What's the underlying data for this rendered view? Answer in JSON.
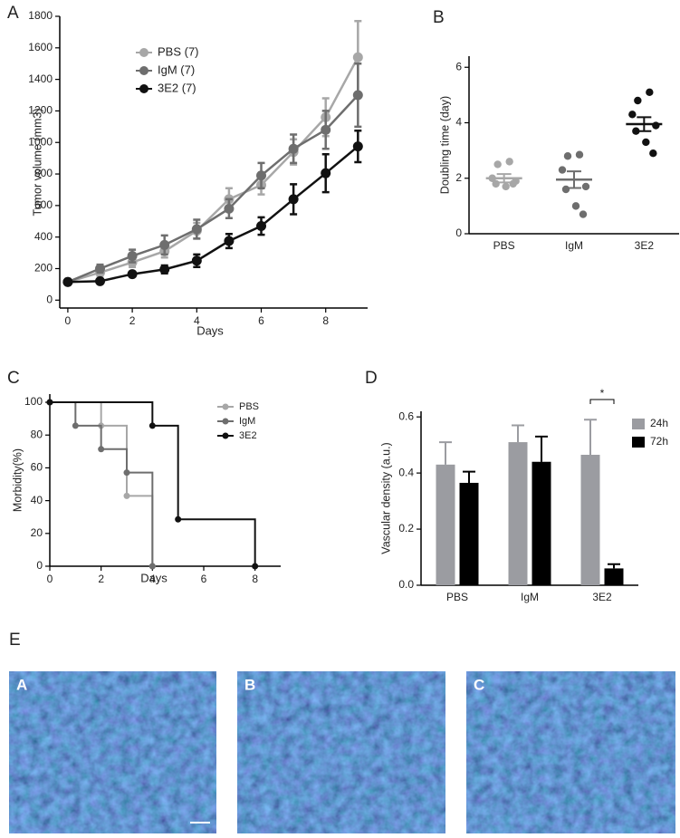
{
  "chart_data": [
    {
      "type": "line",
      "panel": "A",
      "xlabel": "Days",
      "ylabel": "Tumor volume (mm3)",
      "x": [
        0,
        1,
        2,
        3,
        4,
        5,
        6,
        7,
        8,
        9
      ],
      "series": [
        {
          "name": "PBS (7)",
          "color": "#a7a7a7",
          "values": [
            115,
            175,
            240,
            310,
            440,
            640,
            730,
            940,
            1160,
            1540
          ],
          "errors": [
            15,
            20,
            30,
            40,
            50,
            70,
            60,
            80,
            120,
            230
          ]
        },
        {
          "name": "IgM (7)",
          "color": "#6e6e6e",
          "values": [
            115,
            200,
            280,
            350,
            450,
            580,
            790,
            960,
            1080,
            1300
          ],
          "errors": [
            15,
            25,
            40,
            60,
            60,
            60,
            80,
            90,
            120,
            200
          ]
        },
        {
          "name": "3E2 (7)",
          "color": "#111111",
          "values": [
            115,
            120,
            165,
            195,
            250,
            375,
            470,
            640,
            805,
            975
          ],
          "errors": [
            10,
            15,
            15,
            25,
            40,
            45,
            55,
            95,
            120,
            100
          ]
        }
      ],
      "xlim": [
        -0.25,
        9.3
      ],
      "xticks": [
        0,
        2,
        4,
        6,
        8
      ],
      "ylim": [
        -50,
        1800
      ],
      "yticks": [
        0,
        200,
        400,
        600,
        800,
        1000,
        1200,
        1400,
        1600,
        1800
      ]
    },
    {
      "type": "dot",
      "panel": "B",
      "ylabel": "Doubling time (day)",
      "categories": [
        "PBS",
        "IgM",
        "3E2"
      ],
      "colors": [
        "#a7a7a7",
        "#6e6e6e",
        "#111111"
      ],
      "values": [
        [
          2.6,
          2.5,
          2.0,
          1.9,
          1.8,
          1.7,
          1.8
        ],
        [
          2.85,
          2.8,
          2.3,
          1.7,
          1.6,
          1.0,
          0.7
        ],
        [
          5.1,
          4.8,
          4.3,
          3.9,
          3.7,
          3.3,
          2.9
        ]
      ],
      "means": [
        2.0,
        1.95,
        3.95
      ],
      "sems": [
        0.15,
        0.3,
        0.25
      ],
      "ylim": [
        0,
        6.4
      ],
      "yticks": [
        0,
        2,
        4,
        6
      ]
    },
    {
      "type": "step",
      "panel": "C",
      "xlabel": "Days",
      "ylabel": "Morbidity(%)",
      "series": [
        {
          "name": "PBS",
          "color": "#a7a7a7",
          "x": [
            0,
            2,
            3,
            4
          ],
          "values": [
            100,
            85.7,
            42.9,
            0
          ]
        },
        {
          "name": "IgM",
          "color": "#6e6e6e",
          "x": [
            0,
            1,
            2,
            3,
            4
          ],
          "values": [
            100,
            85.7,
            71.4,
            57.1,
            0
          ]
        },
        {
          "name": "3E2",
          "color": "#111111",
          "x": [
            0,
            4,
            5,
            8
          ],
          "values": [
            100,
            85.7,
            28.6,
            0
          ]
        }
      ],
      "xlim": [
        0,
        9
      ],
      "xticks": [
        0,
        2,
        4,
        6,
        8
      ],
      "ylim": [
        0,
        105
      ],
      "yticks": [
        0,
        20,
        40,
        60,
        80,
        100
      ]
    },
    {
      "type": "bar",
      "panel": "D",
      "ylabel": "Vascular density (a.u.)",
      "annotation": "*",
      "categories": [
        "PBS",
        "IgM",
        "3E2"
      ],
      "series": [
        {
          "name": "24h",
          "color": "#9b9ca1",
          "values": [
            0.43,
            0.51,
            0.465
          ],
          "errors": [
            0.08,
            0.06,
            0.125
          ]
        },
        {
          "name": "72h",
          "color": "#000000",
          "values": [
            0.365,
            0.44,
            0.06
          ],
          "errors": [
            0.04,
            0.09,
            0.015
          ]
        }
      ],
      "ylim": [
        0,
        0.62
      ],
      "yticks": [
        {
          "value": 0,
          "label": "0.0"
        },
        0.2,
        0.4,
        0.6
      ]
    }
  ],
  "panel_e": {
    "letter": "E",
    "labels": [
      "A",
      "B",
      "C"
    ]
  }
}
